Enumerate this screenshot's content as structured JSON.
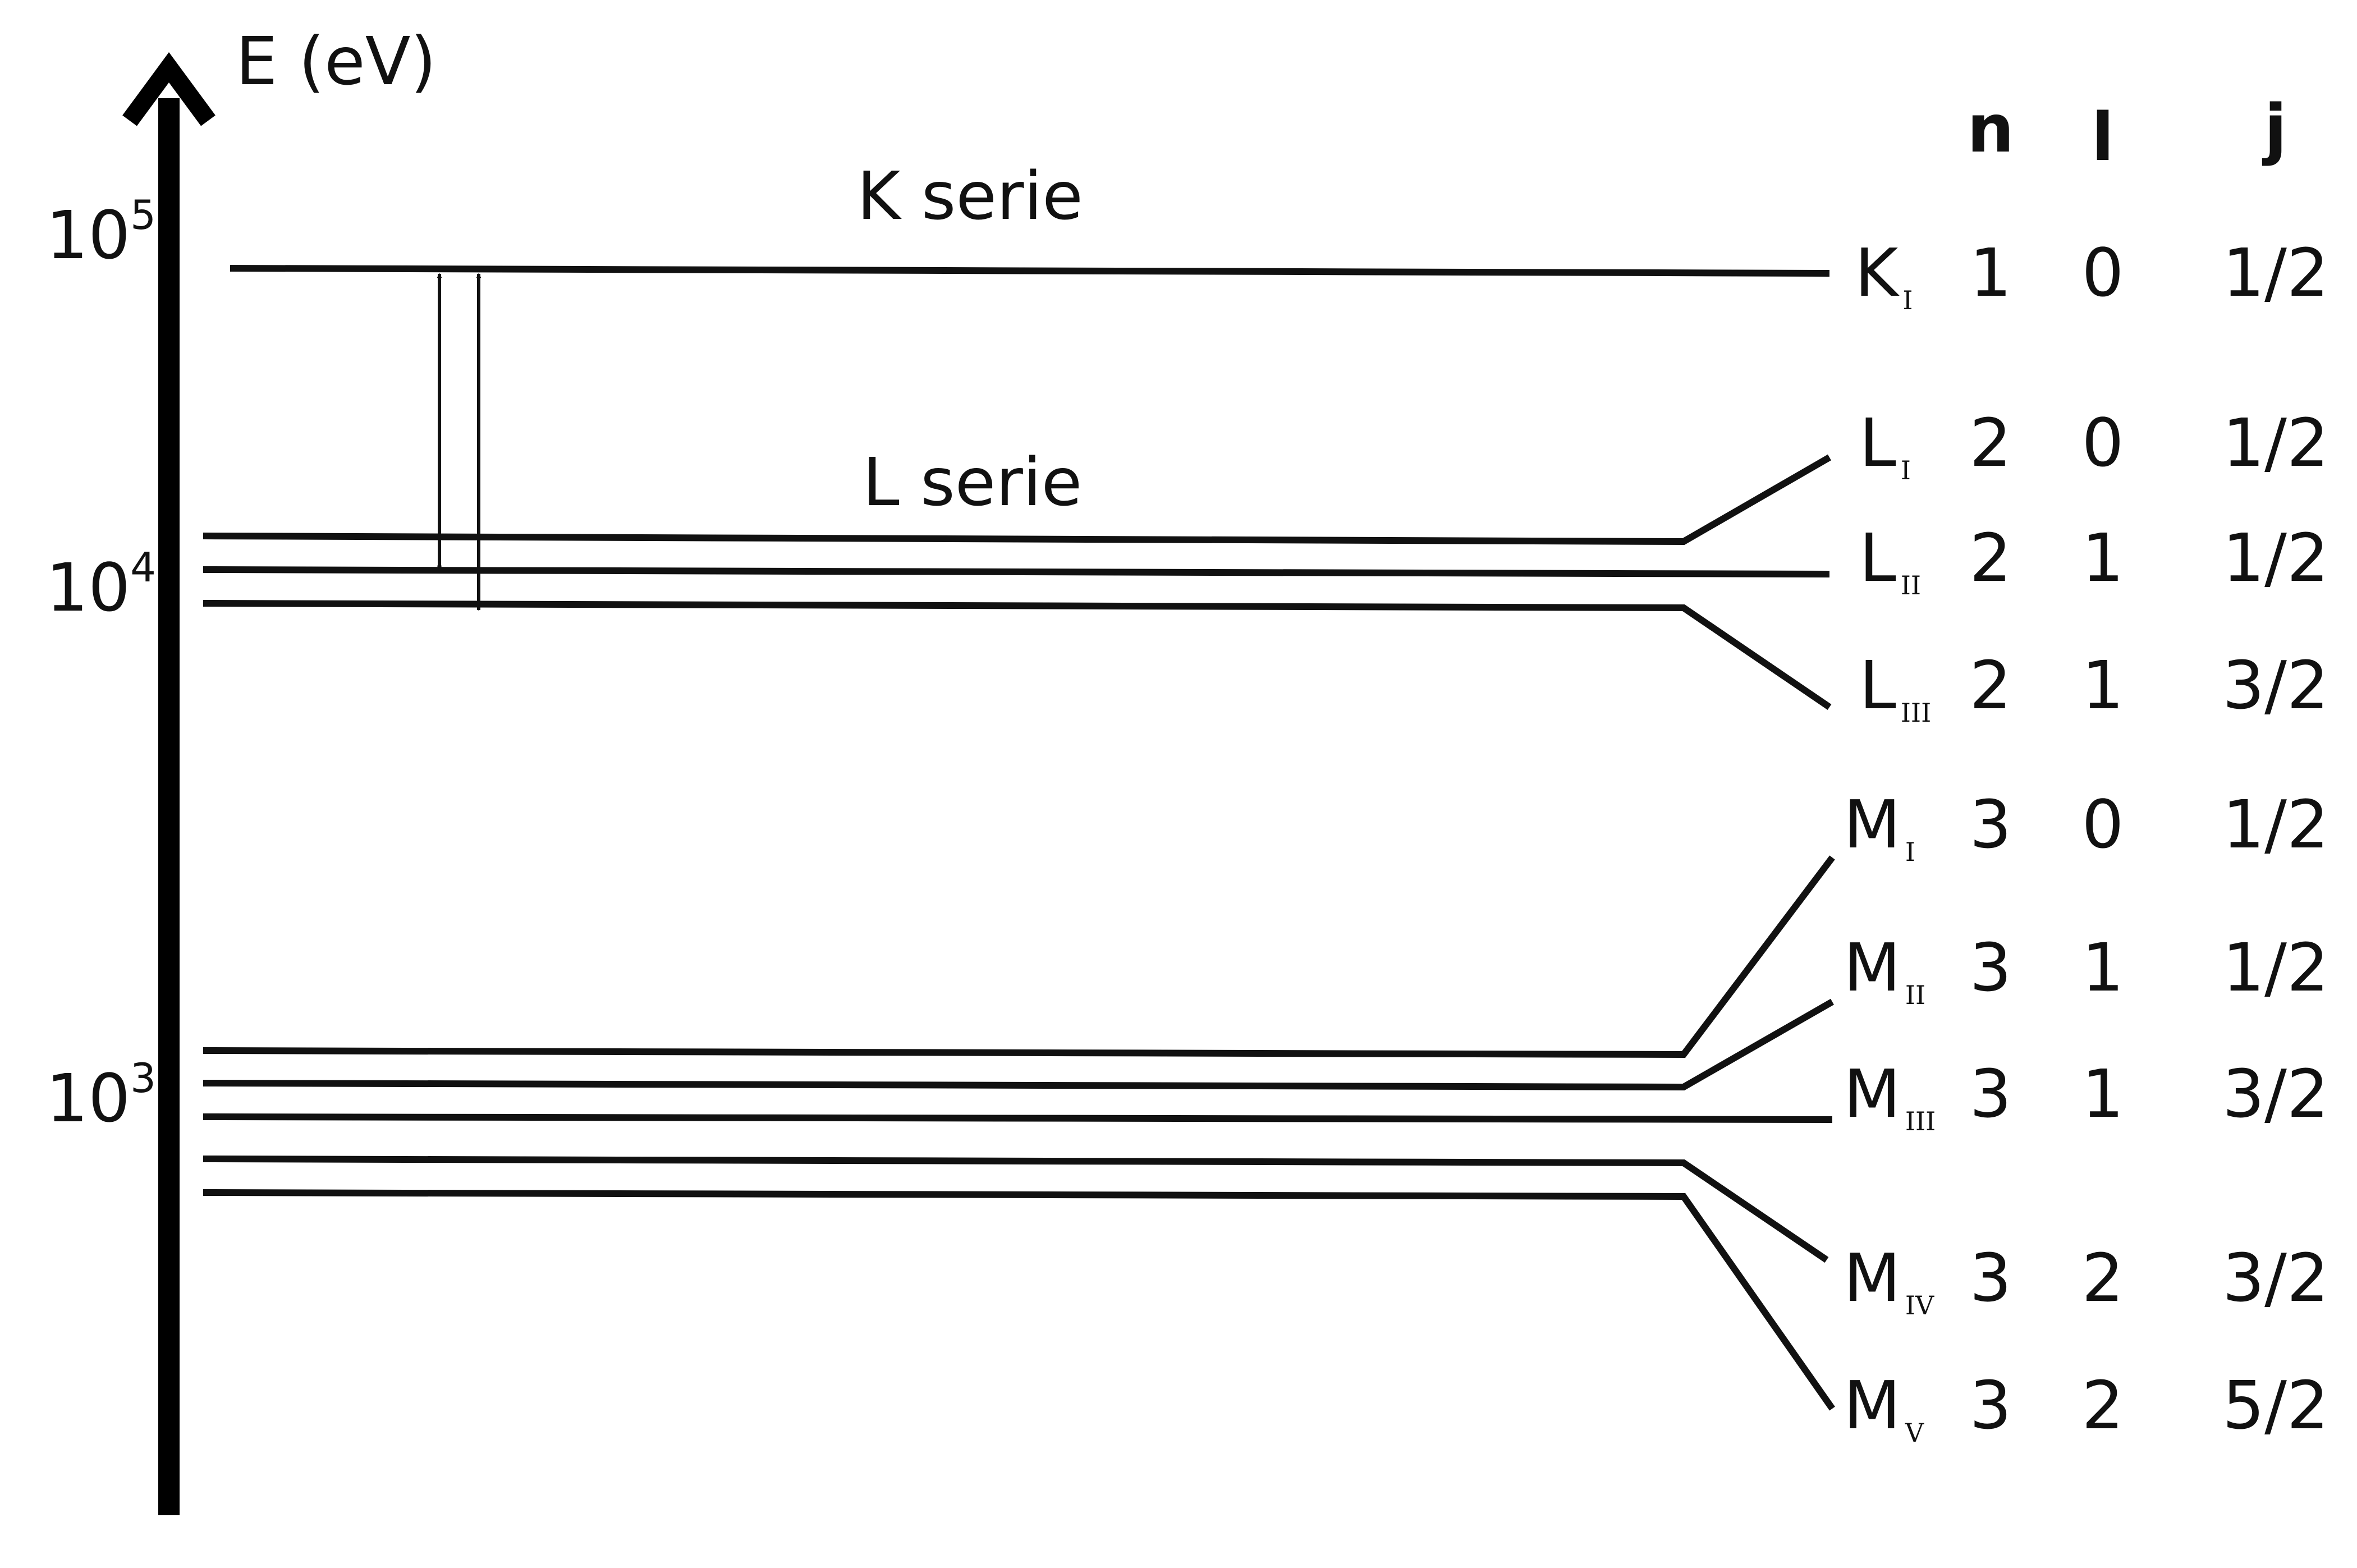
{
  "axis": {
    "label": "E (eV)",
    "ticks": [
      {
        "base": "10",
        "exp": "5"
      },
      {
        "base": "10",
        "exp": "4"
      },
      {
        "base": "10",
        "exp": "3"
      }
    ]
  },
  "series_labels": {
    "k": "K serie",
    "l": "L serie"
  },
  "table_headers": {
    "n": "n",
    "l": "l",
    "j": "j"
  },
  "levels": [
    {
      "letter": "K",
      "roman": "I",
      "n": "1",
      "l": "0",
      "j": "1/2"
    },
    {
      "letter": "L",
      "roman": "I",
      "n": "2",
      "l": "0",
      "j": "1/2"
    },
    {
      "letter": "L",
      "roman": "II",
      "n": "2",
      "l": "1",
      "j": "1/2"
    },
    {
      "letter": "L",
      "roman": "III",
      "n": "2",
      "l": "1",
      "j": "3/2"
    },
    {
      "letter": "M",
      "roman": "I",
      "n": "3",
      "l": "0",
      "j": "1/2"
    },
    {
      "letter": "M",
      "roman": "II",
      "n": "3",
      "l": "1",
      "j": "1/2"
    },
    {
      "letter": "M",
      "roman": "III",
      "n": "3",
      "l": "1",
      "j": "3/2"
    },
    {
      "letter": "M",
      "roman": "IV",
      "n": "3",
      "l": "2",
      "j": "3/2"
    },
    {
      "letter": "M",
      "roman": "V",
      "n": "3",
      "l": "2",
      "j": "5/2"
    }
  ],
  "colors": {
    "line": "#111111",
    "background": "#ffffff"
  }
}
